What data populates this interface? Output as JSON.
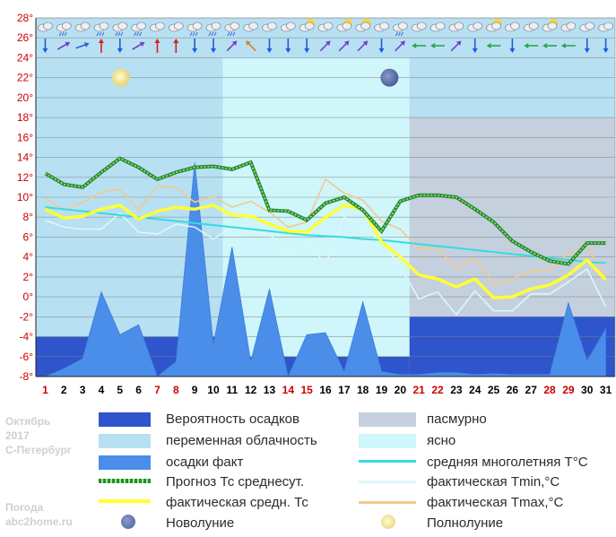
{
  "chart_data": {
    "type": "area",
    "ylim": [
      -8,
      28
    ],
    "y_ticks": [
      "28°",
      "26°",
      "24°",
      "22°",
      "20°",
      "18°",
      "16°",
      "14°",
      "12°",
      "10°",
      "8°",
      "6°",
      "4°",
      "2°",
      "0°",
      "-2°",
      "-4°",
      "-6°",
      "-8°"
    ],
    "x": [
      1,
      2,
      3,
      4,
      5,
      6,
      7,
      8,
      9,
      10,
      11,
      12,
      13,
      14,
      15,
      16,
      17,
      18,
      19,
      20,
      21,
      22,
      23,
      24,
      25,
      26,
      27,
      28,
      29,
      30,
      31
    ],
    "x_tick_labels": [
      "1",
      "2",
      "3",
      "4",
      "5",
      "6",
      "7",
      "8",
      "9",
      "10",
      "11",
      "12",
      "13",
      "14",
      "15",
      "16",
      "17",
      "18",
      "19",
      "20",
      "21",
      "22",
      "23",
      "24",
      "25",
      "26",
      "27",
      "28",
      "29",
      "30",
      "31"
    ],
    "red_days": [
      1,
      7,
      8,
      14,
      15,
      21,
      22,
      28,
      29
    ],
    "bands": [
      {
        "type": "cloudy_variable",
        "from": 1,
        "to": 11,
        "y_from": -4,
        "y_to": 24
      },
      {
        "type": "clear",
        "from": 11,
        "to": 21,
        "y_from": -6,
        "y_to": 24
      },
      {
        "type": "cloudy_variable",
        "from": 21,
        "to": 32,
        "y_from": 18,
        "y_to": 24
      },
      {
        "type": "overcast",
        "from": 21,
        "to": 32,
        "y_from": -2,
        "y_to": 18
      },
      {
        "type": "precip_probability",
        "from": 1,
        "to": 11,
        "y_from": -8,
        "y_to": -4
      },
      {
        "type": "precip_probability",
        "from": 11,
        "to": 21,
        "y_from": -8,
        "y_to": -6
      },
      {
        "type": "precip_probability",
        "from": 21,
        "to": 32,
        "y_from": -8,
        "y_to": -2
      }
    ],
    "series": [
      {
        "key": "precip_fact",
        "values": [
          -8,
          -7.2,
          -6.2,
          0.5,
          -3.8,
          -2.8,
          -8,
          -6.5,
          13.5,
          -4.8,
          5,
          -6.5,
          0.8,
          -8,
          -3.8,
          -3.6,
          -7.5,
          -0.5,
          -7.5,
          -7.8,
          -7.8,
          -7.6,
          -7.6,
          -7.8,
          -7.7,
          -7.8,
          -7.8,
          -7.8,
          -0.6,
          -6.4,
          -3.2
        ]
      },
      {
        "key": "forecast_avg",
        "values": [
          12.4,
          11.3,
          11,
          12.5,
          13.9,
          13,
          11.8,
          12.5,
          13,
          13.1,
          12.8,
          13.5,
          8.7,
          8.6,
          7.7,
          9.4,
          10,
          8.7,
          6.6,
          9.6,
          10.2,
          10.2,
          10,
          8.8,
          7.5,
          5.6,
          4.5,
          3.6,
          3.3,
          5.4,
          5.4
        ]
      },
      {
        "key": "fact_avg",
        "values": [
          8.8,
          7.9,
          8.1,
          8.8,
          9.2,
          7.8,
          8.6,
          9,
          8.8,
          9.2,
          8.2,
          8.1,
          7.3,
          6.6,
          6.5,
          8,
          9.2,
          8.8,
          5.5,
          4,
          2.2,
          1.8,
          1,
          1.8,
          -0.1,
          0,
          0.8,
          1.2,
          2.2,
          3.7,
          1.7
        ]
      },
      {
        "key": "norm_avg",
        "values": [
          9,
          8.8,
          8.6,
          8.4,
          8.2,
          8,
          7.8,
          7.6,
          7.4,
          7.2,
          7,
          6.8,
          6.6,
          6.4,
          6.2,
          6.1,
          6,
          5.8,
          5.7,
          5.5,
          5.3,
          5.1,
          4.9,
          4.7,
          4.5,
          4.3,
          4.1,
          3.9,
          3.7,
          3.5,
          3.4
        ]
      },
      {
        "key": "fact_min",
        "values": [
          7.7,
          7,
          6.8,
          6.8,
          8.4,
          6.5,
          6.3,
          7.3,
          7,
          5.8,
          7,
          6.5,
          6.3,
          4.5,
          5.7,
          3.2,
          8,
          7,
          5.5,
          3,
          -0.2,
          0.5,
          -1.8,
          0.6,
          -1.4,
          -1.4,
          0.3,
          0.3,
          1.5,
          2.8,
          -1
        ]
      },
      {
        "key": "fact_max",
        "values": [
          9.9,
          8.7,
          9.5,
          10.5,
          10.8,
          8.7,
          11.1,
          11,
          9.5,
          10.1,
          9,
          9.6,
          8.5,
          7,
          7.5,
          11.8,
          10.4,
          9.7,
          7.6,
          6.8,
          4.8,
          4.9,
          2.8,
          3.9,
          1.2,
          1.8,
          2.6,
          2.7,
          4.4,
          5,
          2.1
        ]
      }
    ],
    "new_moon_day": 20,
    "full_moon_day": 5,
    "weather_row": [
      "cloud",
      "rain-cloud",
      "cloud",
      "rain-cloud",
      "rain-cloud",
      "rain-cloud",
      "cloud",
      "cloud",
      "rain-cloud",
      "rain-cloud",
      "rain-cloud",
      "cloud",
      "cloud",
      "cloud",
      "sun-cloud",
      "cloud",
      "sun-cloud",
      "sun-cloud",
      "cloud",
      "rain-cloud",
      "cloud",
      "cloud",
      "cloud",
      "cloud",
      "sun-cloud",
      "cloud",
      "cloud",
      "sun-cloud",
      "cloud",
      "cloud",
      "cloud"
    ],
    "wind_row": [
      {
        "c": "#1d5bd8",
        "a": 180
      },
      {
        "c": "#7a3fc8",
        "a": 60
      },
      {
        "c": "#2c63d6",
        "a": 70
      },
      {
        "c": "#d82020",
        "a": 0
      },
      {
        "c": "#1d5bd8",
        "a": 180
      },
      {
        "c": "#7a3fc8",
        "a": 60
      },
      {
        "c": "#d82020",
        "a": 0
      },
      {
        "c": "#d82020",
        "a": 0
      },
      {
        "c": "#1d5bd8",
        "a": 180
      },
      {
        "c": "#1d5bd8",
        "a": 180
      },
      {
        "c": "#7a3fc8",
        "a": 45
      },
      {
        "c": "#d88020",
        "a": -45
      },
      {
        "c": "#1d5bd8",
        "a": 180
      },
      {
        "c": "#1d5bd8",
        "a": 180
      },
      {
        "c": "#1d5bd8",
        "a": 180
      },
      {
        "c": "#7a3fc8",
        "a": 45
      },
      {
        "c": "#7a3fc8",
        "a": 45
      },
      {
        "c": "#7a3fc8",
        "a": 45
      },
      {
        "c": "#1d5bd8",
        "a": 180
      },
      {
        "c": "#7a3fc8",
        "a": 45
      },
      {
        "c": "#2aa84a",
        "a": -90
      },
      {
        "c": "#2aa84a",
        "a": -90
      },
      {
        "c": "#7a3fc8",
        "a": 45
      },
      {
        "c": "#1d5bd8",
        "a": 180
      },
      {
        "c": "#2aa84a",
        "a": -90
      },
      {
        "c": "#1d5bd8",
        "a": 180
      },
      {
        "c": "#2aa84a",
        "a": -90
      },
      {
        "c": "#2aa84a",
        "a": -90
      },
      {
        "c": "#2aa84a",
        "a": -90
      },
      {
        "c": "#1d5bd8",
        "a": 180
      },
      {
        "c": "#1d5bd8",
        "a": 180
      }
    ]
  },
  "colors": {
    "precip_prob": "#2e55cc",
    "variable": "#b8e0f3",
    "precip_fact": "#4a8ee9",
    "forecast": "#2a8a2a",
    "fact_avg": "#ffff33",
    "overcast": "#c4d0de",
    "clear": "#cff6fa",
    "norm": "#33dde0",
    "tmin": "#ddf6fb",
    "tmax": "#f2c98c",
    "grid": "#808080",
    "tick_red": "#cc0000",
    "tick_dark": "#000000"
  },
  "legend": {
    "precip_prob": "Вероятность осадков",
    "variable": "переменная облачность",
    "precip_fact": "осадки факт",
    "forecast": "Прогноз Тс среднесут.",
    "fact_avg": "фактическая средн. Тс",
    "new_moon": "Новолуние",
    "overcast": "пасмурно",
    "clear": "ясно",
    "norm": "средняя многолетняя Т°С",
    "tmin": "фактическая Tmin,°С",
    "tmax": "фактическая Tmax,°С",
    "full_moon": "Полнолуние"
  },
  "watermark": {
    "month": "Октябрь",
    "year": "2017",
    "city": "С-Петербург",
    "site_name": "Погода",
    "site_url": "abc2home.ru"
  }
}
